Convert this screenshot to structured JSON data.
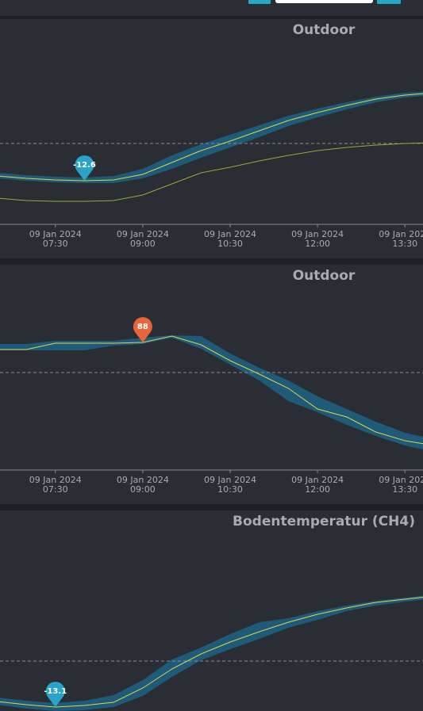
{
  "chart_data": [
    {
      "type": "line",
      "title": "Outdoor",
      "x": [
        6.5,
        7.0,
        7.5,
        8.0,
        8.5,
        9.0,
        9.5,
        10.0,
        10.5,
        11.0,
        11.5,
        12.0,
        12.5,
        13.0,
        13.5,
        14.0
      ],
      "xlim": [
        6.55,
        13.81
      ],
      "ylim": [
        -15.35,
        -3.45
      ],
      "xticks": [
        {
          "value": 7.5,
          "label": "07:30",
          "date": "09 Jan 2024"
        },
        {
          "value": 9.0,
          "label": "09:00",
          "date": "09 Jan 2024"
        },
        {
          "value": 10.5,
          "label": "10:30",
          "date": "09 Jan 2024"
        },
        {
          "value": 12.0,
          "label": "12:00",
          "date": "09 Jan 2024"
        },
        {
          "value": 13.5,
          "label": "13:30",
          "date": "09 Jan 2024"
        }
      ],
      "band": {
        "color": "#1f5a78",
        "high": [
          -12.1,
          -12.25,
          -12.35,
          -12.4,
          -12.3,
          -11.85,
          -11.0,
          -10.3,
          -9.7,
          -9.1,
          -8.5,
          -8.05,
          -7.65,
          -7.3,
          -7.05,
          -6.95
        ],
        "low": [
          -12.45,
          -12.6,
          -12.7,
          -12.75,
          -12.75,
          -12.45,
          -11.85,
          -11.15,
          -10.5,
          -9.85,
          -9.15,
          -8.6,
          -8.1,
          -7.65,
          -7.35,
          -7.2
        ]
      },
      "series": [
        {
          "color": "#d8d84a",
          "values": [
            -12.3,
            -12.45,
            -12.55,
            -12.6,
            -12.55,
            -12.2,
            -11.45,
            -10.7,
            -10.1,
            -9.45,
            -8.8,
            -8.3,
            -7.85,
            -7.45,
            -7.2,
            -7.05
          ]
        },
        {
          "color": "#8fae3a",
          "values": [
            -13.7,
            -13.85,
            -13.9,
            -13.9,
            -13.85,
            -13.5,
            -12.8,
            -12.1,
            -11.75,
            -11.35,
            -11.0,
            -10.7,
            -10.5,
            -10.35,
            -10.25,
            -10.2
          ]
        }
      ],
      "reference": -10.25,
      "marker": {
        "x": 8.0,
        "value": -12.6,
        "color": "#2aa3c9"
      }
    },
    {
      "type": "line",
      "title": "Outdoor",
      "x": [
        6.5,
        7.0,
        7.5,
        8.0,
        8.5,
        9.0,
        9.5,
        10.0,
        10.5,
        11.0,
        11.5,
        12.0,
        12.5,
        13.0,
        13.5,
        14.0
      ],
      "xlim": [
        6.55,
        13.81
      ],
      "ylim": [
        47.75,
        107.25
      ],
      "xticks": [
        {
          "value": 7.5,
          "label": "07:30",
          "date": "09 Jan 2024"
        },
        {
          "value": 9.0,
          "label": "09:00",
          "date": "09 Jan 2024"
        },
        {
          "value": 10.5,
          "label": "10:30",
          "date": "09 Jan 2024"
        },
        {
          "value": 12.0,
          "label": "12:00",
          "date": "09 Jan 2024"
        },
        {
          "value": 13.5,
          "label": "13:30",
          "date": "09 Jan 2024"
        }
      ],
      "band": {
        "color": "#1f5a78",
        "high": [
          87.5,
          87.5,
          88.5,
          88.5,
          88.5,
          89.5,
          90.25,
          90,
          84.5,
          80,
          76,
          71,
          67,
          63,
          59.5,
          57.5
        ],
        "low": [
          85.5,
          85.5,
          85.5,
          85.5,
          87,
          87.5,
          89.5,
          86,
          81,
          76,
          69.5,
          66,
          62,
          58.5,
          55.5,
          53.5
        ]
      },
      "series": [
        {
          "color": "#d8d84a",
          "values": [
            85.75,
            85.75,
            87.75,
            87.75,
            87.75,
            88,
            90,
            87.25,
            82.25,
            78,
            73.5,
            67,
            64.5,
            59.75,
            57,
            55.5
          ]
        }
      ],
      "reference": 78.5,
      "marker": {
        "x": 9.0,
        "value": 88,
        "color": "#e8653a"
      }
    },
    {
      "type": "line",
      "title": "Bodentemperatur (CH4)",
      "x": [
        6.5,
        7.0,
        7.5,
        8.0,
        8.5,
        9.0,
        9.5,
        10.0,
        10.5,
        11.0,
        11.5,
        12.0,
        12.5,
        13.0,
        13.5,
        14.0
      ],
      "xlim": [
        6.55,
        13.81
      ],
      "ylim": [
        -13.65,
        -1.75
      ],
      "band": {
        "color": "#1f5a78",
        "high": [
          -12.5,
          -12.7,
          -12.85,
          -12.7,
          -12.35,
          -11.4,
          -10.1,
          -9.35,
          -8.5,
          -7.75,
          -7.5,
          -7.05,
          -6.7,
          -6.4,
          -6.2,
          -6.0
        ],
        "low": [
          -12.95,
          -13.2,
          -13.35,
          -13.3,
          -13.1,
          -12.4,
          -11.2,
          -10.15,
          -9.45,
          -8.8,
          -8.1,
          -7.6,
          -7.05,
          -6.7,
          -6.45,
          -6.25
        ]
      },
      "series": [
        {
          "color": "#d8d84a",
          "values": [
            -12.75,
            -12.95,
            -13.1,
            -13.0,
            -12.8,
            -11.9,
            -10.7,
            -9.75,
            -9.0,
            -8.35,
            -7.75,
            -7.25,
            -6.85,
            -6.5,
            -6.3,
            -6.1
          ]
        }
      ],
      "reference": -10.2,
      "marker": {
        "x": 7.5,
        "value": -13.1,
        "color": "#2aa3c9"
      }
    }
  ]
}
